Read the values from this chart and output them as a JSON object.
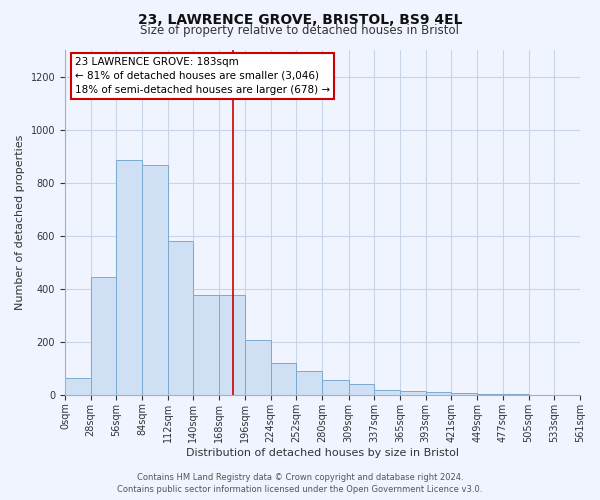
{
  "title": "23, LAWRENCE GROVE, BRISTOL, BS9 4EL",
  "subtitle": "Size of property relative to detached houses in Bristol",
  "xlabel": "Distribution of detached houses by size in Bristol",
  "ylabel": "Number of detached properties",
  "bar_color": "#cfe0f5",
  "bar_edge_color": "#7aaad0",
  "bin_edges": [
    0,
    28,
    56,
    84,
    112,
    140,
    168,
    196,
    224,
    252,
    280,
    309,
    337,
    365,
    393,
    421,
    449,
    477,
    505,
    533,
    561
  ],
  "bin_labels": [
    "0sqm",
    "28sqm",
    "56sqm",
    "84sqm",
    "112sqm",
    "140sqm",
    "168sqm",
    "196sqm",
    "224sqm",
    "252sqm",
    "280sqm",
    "309sqm",
    "337sqm",
    "365sqm",
    "393sqm",
    "421sqm",
    "449sqm",
    "477sqm",
    "505sqm",
    "533sqm",
    "561sqm"
  ],
  "counts": [
    65,
    445,
    885,
    865,
    580,
    375,
    375,
    205,
    120,
    90,
    55,
    40,
    20,
    15,
    10,
    5,
    3,
    2,
    1,
    0
  ],
  "property_value": 183,
  "vline_color": "#cc0000",
  "annotation_title": "23 LAWRENCE GROVE: 183sqm",
  "annotation_line1": "← 81% of detached houses are smaller (3,046)",
  "annotation_line2": "18% of semi-detached houses are larger (678) →",
  "annotation_box_color": "#ffffff",
  "annotation_box_edge": "#cc0000",
  "ylim": [
    0,
    1300
  ],
  "yticks": [
    0,
    200,
    400,
    600,
    800,
    1000,
    1200
  ],
  "footer_line1": "Contains HM Land Registry data © Crown copyright and database right 2024.",
  "footer_line2": "Contains public sector information licensed under the Open Government Licence v3.0.",
  "footer_color": "#555555",
  "background_color": "#f0f4ff",
  "grid_color": "#c8d4e8",
  "title_fontsize": 10,
  "subtitle_fontsize": 8.5,
  "ylabel_fontsize": 8,
  "xlabel_fontsize": 8,
  "tick_fontsize": 7,
  "annotation_fontsize": 7.5,
  "footer_fontsize": 6
}
